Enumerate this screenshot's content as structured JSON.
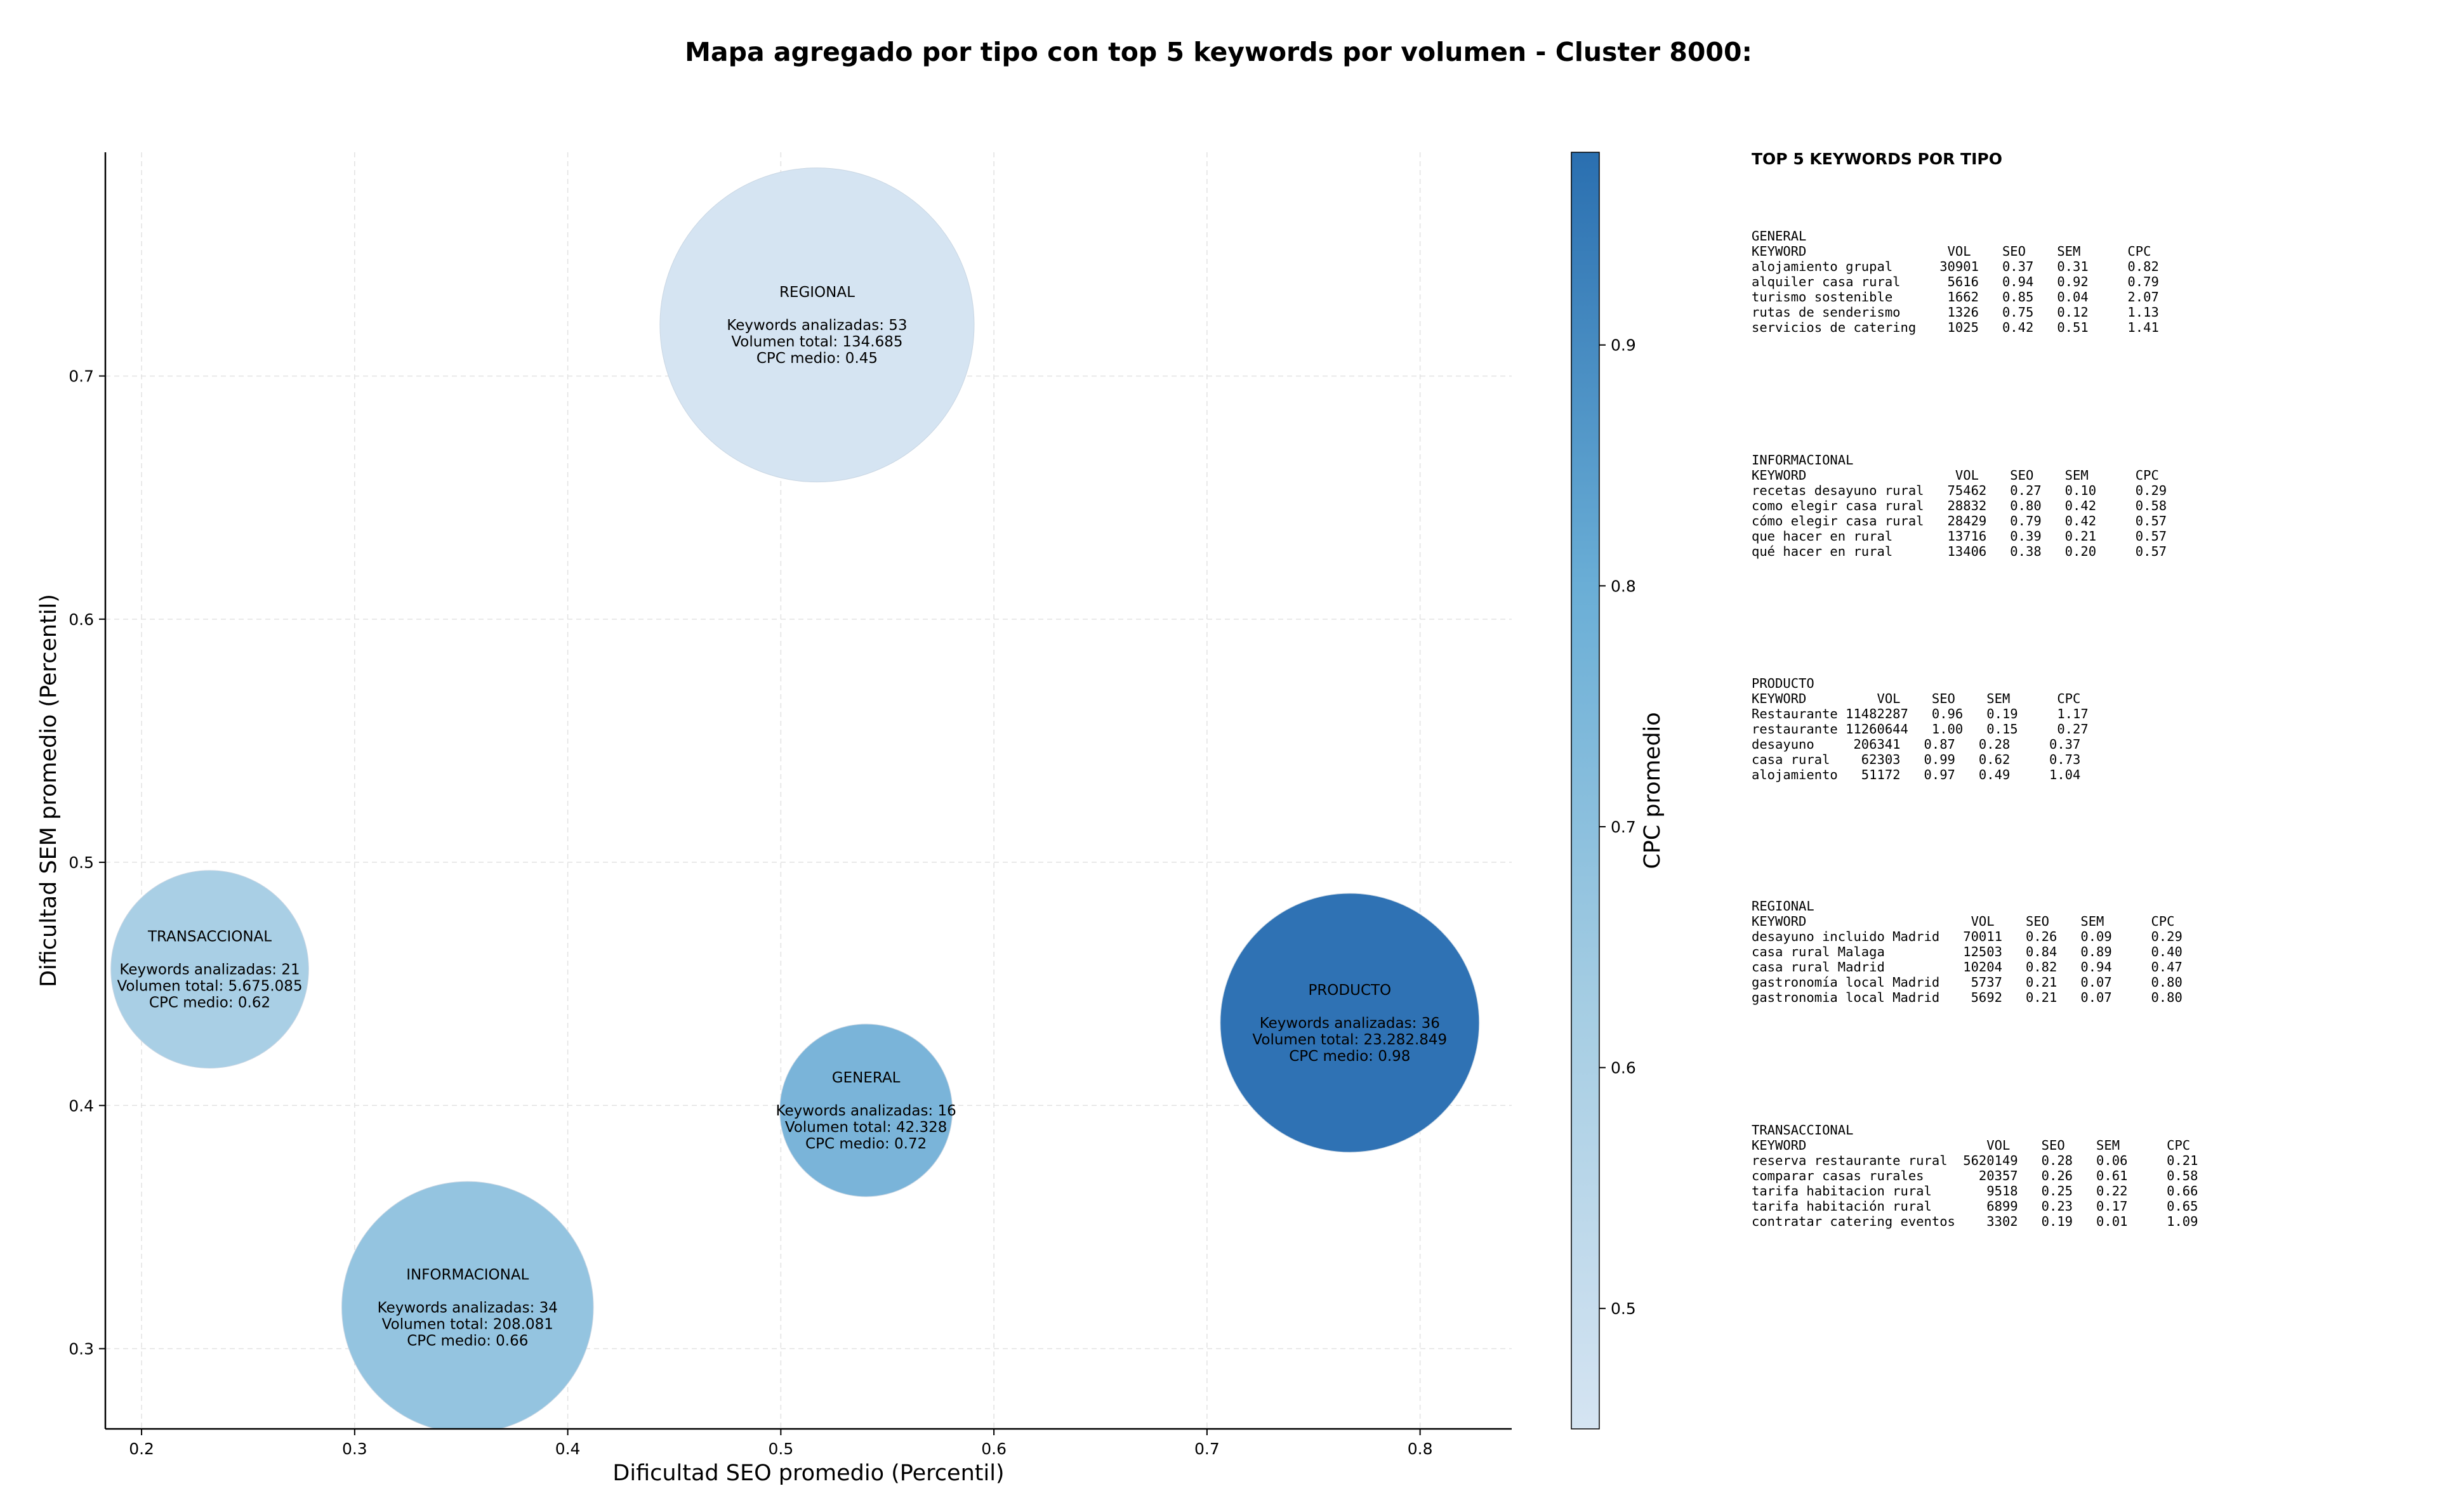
{
  "chart_data": {
    "type": "scatter",
    "title": "Mapa agregado por tipo con top 5 keywords por volumen - Cluster 8000:",
    "xlabel": "Dificultad SEO promedio (Percentil)",
    "ylabel": "Dificultad SEM promedio (Percentil)",
    "xlim": [
      0.183,
      0.843
    ],
    "ylim": [
      0.267,
      0.792
    ],
    "x_ticks": [
      "0.2",
      "0.3",
      "0.4",
      "0.5",
      "0.6",
      "0.7",
      "0.8"
    ],
    "y_ticks": [
      "0.3",
      "0.4",
      "0.5",
      "0.6",
      "0.7"
    ],
    "grid": true,
    "colorbar": {
      "label": "CPC promedio",
      "range": [
        0.45,
        0.98
      ],
      "ticks": [
        "0.5",
        "0.6",
        "0.7",
        "0.8",
        "0.9"
      ],
      "colors": [
        "#d5e4f2",
        "#a5cde3",
        "#6aaed6",
        "#2a6fb0"
      ]
    },
    "points": [
      {
        "name": "REGIONAL",
        "x": 0.517,
        "y": 0.721,
        "keywords_label": "Keywords analizadas: 53",
        "volume_label": "Volumen total: 134.685",
        "cpc_label": "CPC medio: 0.45",
        "cpc": 0.45,
        "color": "#d5e4f2",
        "keywords": 53
      },
      {
        "name": "TRANSACCIONAL",
        "x": 0.232,
        "y": 0.456,
        "keywords_label": "Keywords analizadas: 21",
        "volume_label": "Volumen total: 5.675.085",
        "cpc_label": "CPC medio: 0.62",
        "cpc": 0.62,
        "color": "#a9cfe5",
        "keywords": 21
      },
      {
        "name": "PRODUCTO",
        "x": 0.767,
        "y": 0.434,
        "keywords_label": "Keywords analizadas: 36",
        "volume_label": "Volumen total: 23.282.849",
        "cpc_label": "CPC medio: 0.98",
        "cpc": 0.98,
        "color": "#2f72b4",
        "keywords": 36
      },
      {
        "name": "GENERAL",
        "x": 0.54,
        "y": 0.398,
        "keywords_label": "Keywords analizadas: 16",
        "volume_label": "Volumen total: 42.328",
        "cpc_label": "CPC medio: 0.72",
        "cpc": 0.72,
        "color": "#7ab4d9",
        "keywords": 16
      },
      {
        "name": "INFORMACIONAL",
        "x": 0.353,
        "y": 0.317,
        "keywords_label": "Keywords analizadas: 34",
        "volume_label": "Volumen total: 208.081",
        "cpc_label": "CPC medio: 0.66",
        "cpc": 0.66,
        "color": "#94c4e0",
        "keywords": 34
      }
    ]
  },
  "tables": {
    "heading": "TOP 5 KEYWORDS POR TIPO",
    "blocks": [
      {
        "text": "GENERAL\nKEYWORD                  VOL    SEO    SEM      CPC\nalojamiento grupal      30901   0.37   0.31     0.82\nalquiler casa rural      5616   0.94   0.92     0.79\nturismo sostenible       1662   0.85   0.04     2.07\nrutas de senderismo      1326   0.75   0.12     1.13\nservicios de catering    1025   0.42   0.51     1.41"
      },
      {
        "text": "INFORMACIONAL\nKEYWORD                   VOL    SEO    SEM      CPC\nrecetas desayuno rural   75462   0.27   0.10     0.29\ncomo elegir casa rural   28832   0.80   0.42     0.58\ncómo elegir casa rural   28429   0.79   0.42     0.57\nque hacer en rural       13716   0.39   0.21     0.57\nqué hacer en rural       13406   0.38   0.20     0.57"
      },
      {
        "text": "PRODUCTO\nKEYWORD         VOL    SEO    SEM      CPC\nRestaurante 11482287   0.96   0.19     1.17\nrestaurante 11260644   1.00   0.15     0.27\ndesayuno     206341   0.87   0.28     0.37\ncasa rural    62303   0.99   0.62     0.73\nalojamiento   51172   0.97   0.49     1.04"
      },
      {
        "text": "REGIONAL\nKEYWORD                     VOL    SEO    SEM      CPC\ndesayuno incluido Madrid   70011   0.26   0.09     0.29\ncasa rural Malaga          12503   0.84   0.89     0.40\ncasa rural Madrid          10204   0.82   0.94     0.47\ngastronomía local Madrid    5737   0.21   0.07     0.80\ngastronomia local Madrid    5692   0.21   0.07     0.80"
      },
      {
        "text": "TRANSACCIONAL\nKEYWORD                       VOL    SEO    SEM      CPC\nreserva restaurante rural  5620149   0.28   0.06     0.21\ncomparar casas rurales       20357   0.26   0.61     0.58\ntarifa habitacion rural       9518   0.25   0.22     0.66\ntarifa habitación rural       6899   0.23   0.17     0.65\ncontratar catering eventos    3302   0.19   0.01     1.09"
      }
    ]
  }
}
